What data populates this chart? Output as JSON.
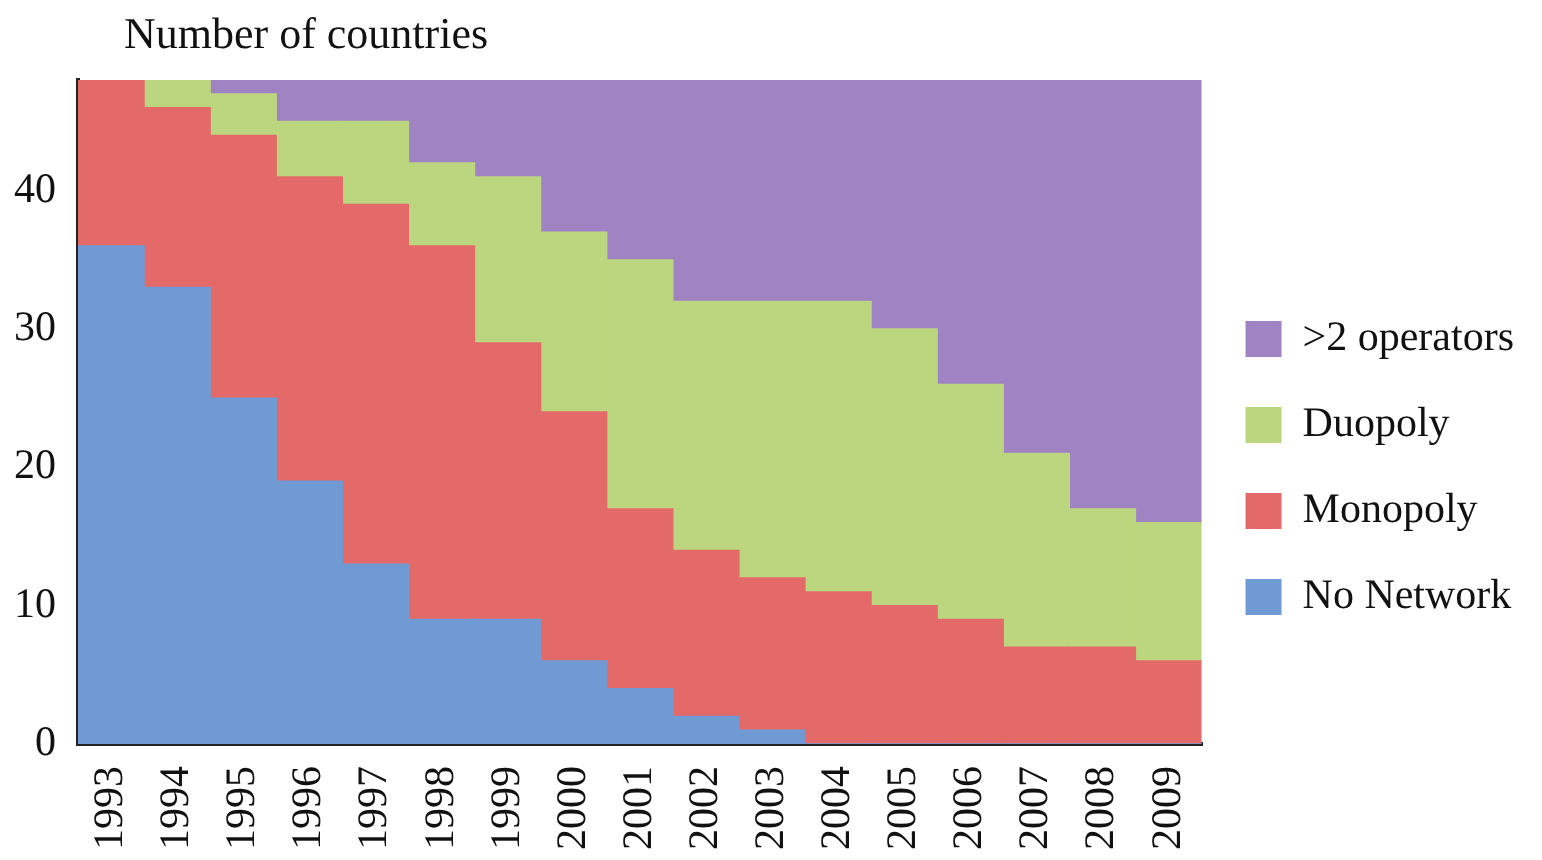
{
  "chart_data": {
    "type": "bar",
    "title": "Number of countries",
    "stacked": true,
    "categories": [
      "1993",
      "1994",
      "1995",
      "1996",
      "1997",
      "1998",
      "1999",
      "2000",
      "2001",
      "2002",
      "2003",
      "2004",
      "2005",
      "2006",
      "2007",
      "2008",
      "2009"
    ],
    "series": [
      {
        "name": "No Network",
        "color": "#6f9ad3",
        "values": [
          36,
          33,
          25,
          19,
          13,
          9,
          9,
          6,
          4,
          2,
          1,
          0,
          0,
          0,
          0,
          0,
          0
        ]
      },
      {
        "name": "Monopoly",
        "color": "#e46a6a",
        "values": [
          12,
          13,
          19,
          22,
          26,
          27,
          20,
          18,
          13,
          12,
          11,
          11,
          10,
          9,
          7,
          7,
          6
        ]
      },
      {
        "name": "Duopoly",
        "color": "#bcd67f",
        "values": [
          0,
          2,
          3,
          4,
          6,
          6,
          12,
          13,
          18,
          18,
          20,
          21,
          20,
          17,
          14,
          10,
          10
        ]
      },
      {
        "name": ">2 operators",
        "color": "#9f83c2",
        "values": [
          0,
          0,
          1,
          3,
          3,
          6,
          7,
          11,
          13,
          16,
          16,
          16,
          18,
          22,
          27,
          31,
          32
        ]
      }
    ],
    "ylim": [
      0,
      48
    ],
    "yticks": [
      0,
      10,
      20,
      30,
      40
    ],
    "grid": false,
    "legend": "right"
  }
}
